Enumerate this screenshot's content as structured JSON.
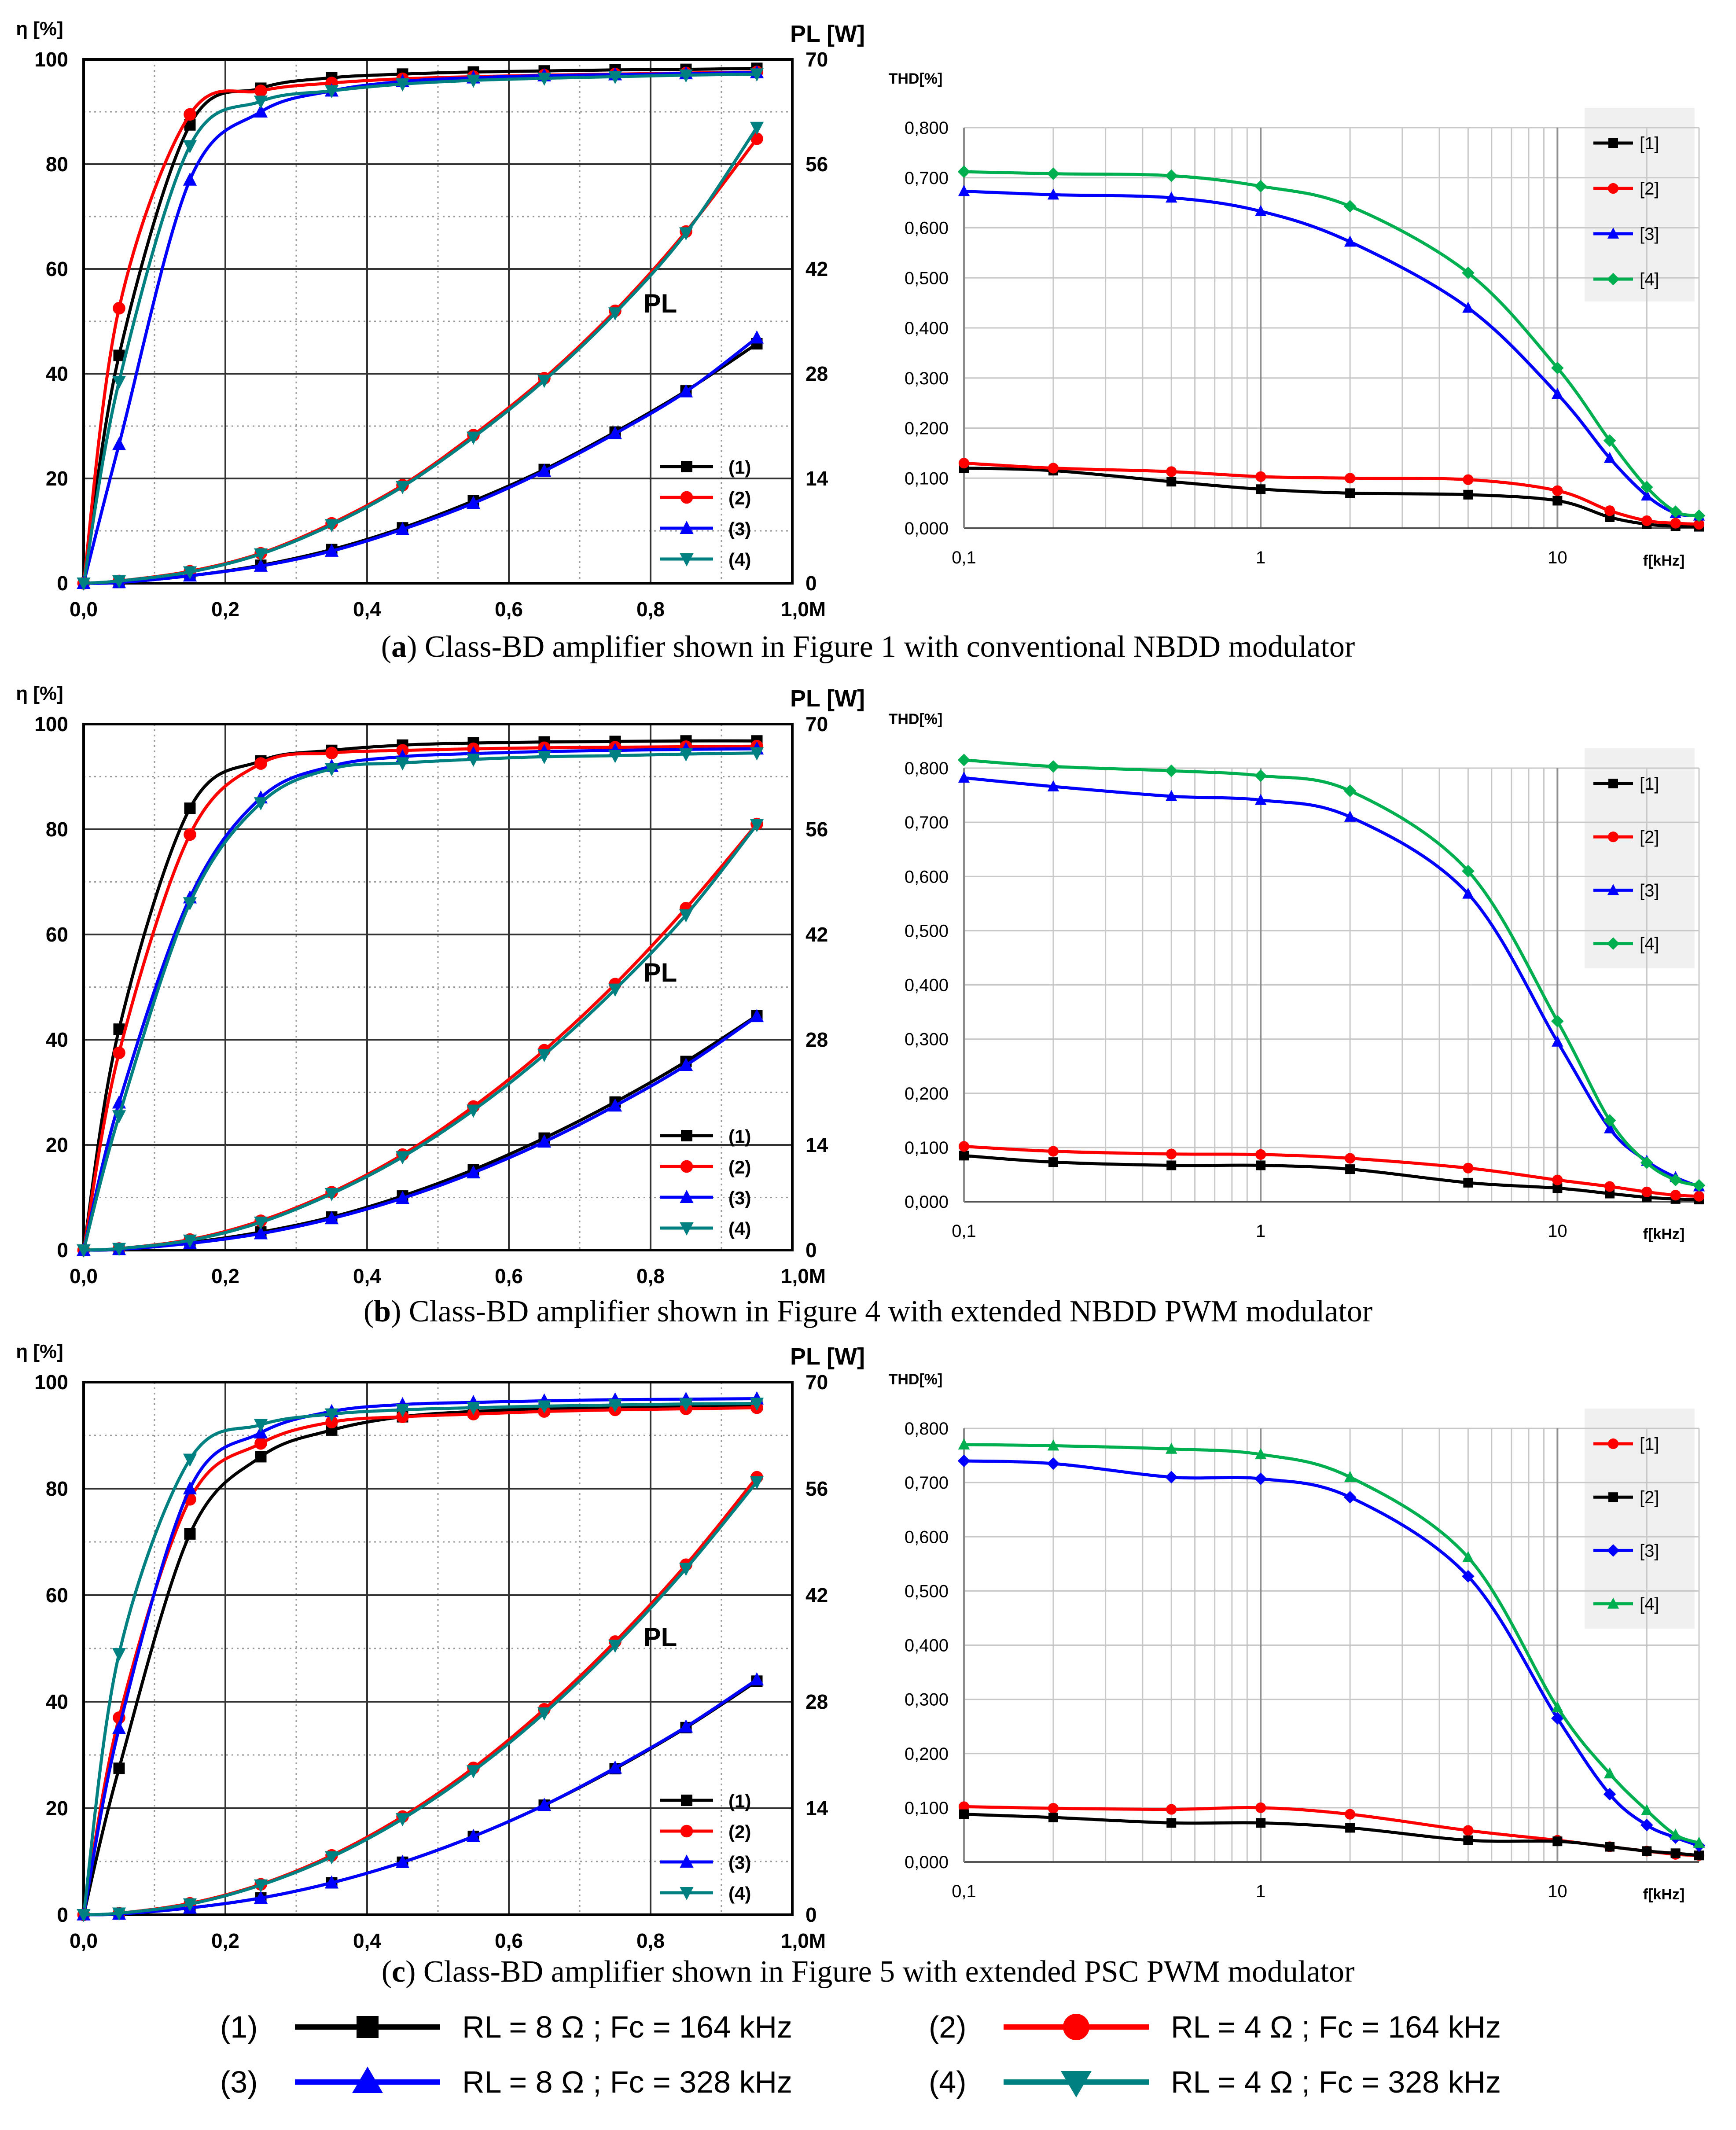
{
  "captions": [
    {
      "letter": "a",
      "text": ") Class-BD amplifier shown in Figure 1 with conventional NBDD modulator"
    },
    {
      "letter": "b",
      "text": ") Class-BD amplifier shown in Figure 4 with extended NBDD PWM modulator"
    },
    {
      "letter": "c",
      "text": ") Class-BD amplifier shown in Figure 5 with extended PSC PWM modulator"
    }
  ],
  "bottom_legend": [
    {
      "num": "(1)",
      "label": "RL = 8 Ω ; Fc = 164 kHz",
      "color": "#000000",
      "marker": "square"
    },
    {
      "num": "(2)",
      "label": "RL = 4 Ω ; Fc = 164 kHz",
      "color": "#ff0000",
      "marker": "circle"
    },
    {
      "num": "(3)",
      "label": "RL = 8 Ω ; Fc = 328 kHz",
      "color": "#0000ff",
      "marker": "triangle-up"
    },
    {
      "num": "(4)",
      "label": "RL = 4 Ω ; Fc = 328 kHz",
      "color": "#008080",
      "marker": "triangle-down"
    }
  ],
  "chart_data": [
    {
      "type": "line",
      "panel": "a-left",
      "ylabel": "η [%]",
      "ylabel2": "PL [W]",
      "xlabel_end": "1,0M",
      "annotation": "PL",
      "xlim": [
        0,
        1.0
      ],
      "ylim": [
        0,
        100
      ],
      "y2lim": [
        0,
        70
      ],
      "xticks": [
        "0,0",
        "0,2",
        "0,4",
        "0,6",
        "0,8"
      ],
      "yticks": [
        "0",
        "20",
        "40",
        "60",
        "80",
        "100"
      ],
      "y2ticks": [
        "0",
        "14",
        "28",
        "42",
        "56",
        "70"
      ],
      "legend": [
        "(1)",
        "(2)",
        "(3)",
        "(4)"
      ],
      "x": [
        0,
        0.05,
        0.15,
        0.25,
        0.35,
        0.45,
        0.55,
        0.65,
        0.75,
        0.85,
        0.95
      ],
      "series": [
        {
          "name": "(1)",
          "color": "#000000",
          "marker": "square",
          "axis": "eta",
          "values": [
            0,
            43.5,
            87.5,
            94.5,
            96.5,
            97.2,
            97.6,
            97.8,
            98,
            98.1,
            98.3
          ]
        },
        {
          "name": "(2)",
          "color": "#ff0000",
          "marker": "circle",
          "axis": "eta",
          "values": [
            0,
            52.5,
            89.5,
            94,
            95.5,
            96.3,
            96.7,
            97,
            97.2,
            97.4,
            97.6
          ]
        },
        {
          "name": "(3)",
          "color": "#0000ff",
          "marker": "triangle-up",
          "axis": "eta",
          "values": [
            0,
            26.5,
            77,
            90,
            94,
            95.8,
            96.5,
            96.9,
            97.1,
            97.3,
            97.5
          ]
        },
        {
          "name": "(4)",
          "color": "#008080",
          "marker": "triangle-down",
          "axis": "eta",
          "values": [
            0,
            38.5,
            83.5,
            92,
            94,
            95.3,
            96,
            96.4,
            96.7,
            97,
            97.2
          ]
        },
        {
          "name": "(1)",
          "color": "#000000",
          "marker": "square",
          "axis": "pl",
          "values": [
            0,
            0.1,
            1,
            2.4,
            4.5,
            7.4,
            11,
            15.2,
            20.2,
            25.7,
            32
          ]
        },
        {
          "name": "(2)",
          "color": "#ff0000",
          "marker": "circle",
          "axis": "pl",
          "values": [
            0,
            0.3,
            1.6,
            4,
            8,
            13.1,
            19.8,
            27.4,
            36.4,
            47,
            59.4
          ]
        },
        {
          "name": "(3)",
          "color": "#0000ff",
          "marker": "triangle-up",
          "axis": "pl",
          "values": [
            0,
            0.1,
            1,
            2.3,
            4.3,
            7.2,
            10.7,
            15,
            20,
            25.6,
            32.8
          ]
        },
        {
          "name": "(4)",
          "color": "#008080",
          "marker": "triangle-down",
          "axis": "pl",
          "values": [
            0,
            0.3,
            1.5,
            3.9,
            7.8,
            12.9,
            19.5,
            27.1,
            36.1,
            46.8,
            60.9
          ]
        }
      ]
    },
    {
      "type": "line",
      "panel": "a-right",
      "ylabel": "THD[%]",
      "xlabel": "f[kHz]",
      "xscale": "log",
      "xlim": [
        0.1,
        30
      ],
      "ylim": [
        0,
        0.8
      ],
      "xticks": [
        "0,1",
        "1",
        "10"
      ],
      "yticks": [
        "0,000",
        "0,100",
        "0,200",
        "0,300",
        "0,400",
        "0,500",
        "0,600",
        "0,700",
        "0,800"
      ],
      "legend": [
        "[1]",
        "[2]",
        "[3]",
        "[4]"
      ],
      "x": [
        0.1,
        0.2,
        0.5,
        1,
        2,
        5,
        10,
        15,
        20,
        25,
        30
      ],
      "series": [
        {
          "name": "[1]",
          "color": "#000000",
          "marker": "square",
          "values": [
            0.12,
            0.115,
            0.093,
            0.078,
            0.07,
            0.067,
            0.055,
            0.022,
            0.008,
            0.004,
            0.003
          ]
        },
        {
          "name": "[2]",
          "color": "#ff0000",
          "marker": "circle",
          "values": [
            0.13,
            0.12,
            0.113,
            0.103,
            0.1,
            0.097,
            0.075,
            0.035,
            0.015,
            0.01,
            0.008
          ]
        },
        {
          "name": "[3]",
          "color": "#0000ff",
          "marker": "triangle-up",
          "values": [
            0.673,
            0.666,
            0.66,
            0.633,
            0.572,
            0.44,
            0.268,
            0.14,
            0.065,
            0.03,
            0.025
          ]
        },
        {
          "name": "[4]",
          "color": "#00b050",
          "marker": "diamond",
          "values": [
            0.712,
            0.708,
            0.704,
            0.683,
            0.643,
            0.51,
            0.32,
            0.175,
            0.082,
            0.033,
            0.025
          ]
        }
      ]
    },
    {
      "type": "line",
      "panel": "b-left",
      "ylabel": "η [%]",
      "ylabel2": "PL [W]",
      "xlabel_end": "1,0M",
      "annotation": "PL",
      "xlim": [
        0,
        1.0
      ],
      "ylim": [
        0,
        100
      ],
      "y2lim": [
        0,
        70
      ],
      "xticks": [
        "0,0",
        "0,2",
        "0,4",
        "0,6",
        "0,8"
      ],
      "yticks": [
        "0",
        "20",
        "40",
        "60",
        "80",
        "100"
      ],
      "y2ticks": [
        "0",
        "14",
        "28",
        "42",
        "56",
        "70"
      ],
      "legend": [
        "(1)",
        "(2)",
        "(3)",
        "(4)"
      ],
      "x": [
        0,
        0.05,
        0.15,
        0.25,
        0.35,
        0.45,
        0.55,
        0.65,
        0.75,
        0.85,
        0.95
      ],
      "series": [
        {
          "name": "(1)",
          "color": "#000000",
          "marker": "square",
          "axis": "eta",
          "values": [
            0,
            42,
            84,
            93,
            95,
            96,
            96.4,
            96.6,
            96.7,
            96.8,
            96.8
          ]
        },
        {
          "name": "(2)",
          "color": "#ff0000",
          "marker": "circle",
          "axis": "eta",
          "values": [
            0,
            37.5,
            79,
            92.5,
            94.5,
            95,
            95.3,
            95.5,
            95.6,
            95.7,
            95.8
          ]
        },
        {
          "name": "(3)",
          "color": "#0000ff",
          "marker": "triangle-up",
          "axis": "eta",
          "values": [
            0,
            28,
            67,
            86,
            92,
            93.8,
            94.4,
            94.8,
            95,
            95.2,
            95.3
          ]
        },
        {
          "name": "(4)",
          "color": "#008080",
          "marker": "triangle-down",
          "axis": "eta",
          "values": [
            0,
            25.5,
            66,
            85,
            91.5,
            92.6,
            93.3,
            93.8,
            94,
            94.3,
            94.5
          ]
        },
        {
          "name": "(1)",
          "color": "#000000",
          "marker": "square",
          "axis": "pl",
          "values": [
            0,
            0.1,
            1,
            2.4,
            4.4,
            7.2,
            10.7,
            14.9,
            19.7,
            25.1,
            31.2
          ]
        },
        {
          "name": "(2)",
          "color": "#ff0000",
          "marker": "circle",
          "axis": "pl",
          "values": [
            0,
            0.2,
            1.4,
            3.9,
            7.7,
            12.7,
            19.1,
            26.6,
            35.4,
            45.5,
            56.7
          ]
        },
        {
          "name": "(3)",
          "color": "#0000ff",
          "marker": "triangle-up",
          "axis": "pl",
          "values": [
            0,
            0.1,
            0.9,
            2.2,
            4.2,
            6.9,
            10.3,
            14.4,
            19.2,
            24.6,
            31.1
          ]
        },
        {
          "name": "(4)",
          "color": "#008080",
          "marker": "triangle-down",
          "axis": "pl",
          "values": [
            0,
            0.2,
            1.3,
            3.7,
            7.5,
            12.4,
            18.6,
            26,
            34.7,
            44.6,
            56.6
          ]
        }
      ]
    },
    {
      "type": "line",
      "panel": "b-right",
      "ylabel": "THD[%]",
      "xlabel": "f[kHz]",
      "xscale": "log",
      "xlim": [
        0.1,
        30
      ],
      "ylim": [
        0,
        0.8
      ],
      "xticks": [
        "0,1",
        "1",
        "10"
      ],
      "yticks": [
        "0,000",
        "0,100",
        "0,200",
        "0,300",
        "0,400",
        "0,500",
        "0,600",
        "0,700",
        "0,800"
      ],
      "legend": [
        "[1]",
        "[2]",
        "[3]",
        "[4]"
      ],
      "x": [
        0.1,
        0.2,
        0.5,
        1,
        2,
        5,
        10,
        15,
        20,
        25,
        30
      ],
      "series": [
        {
          "name": "[1]",
          "color": "#000000",
          "marker": "square",
          "values": [
            0.085,
            0.073,
            0.067,
            0.067,
            0.06,
            0.035,
            0.025,
            0.015,
            0.008,
            0.005,
            0.004
          ]
        },
        {
          "name": "[2]",
          "color": "#ff0000",
          "marker": "circle",
          "values": [
            0.102,
            0.093,
            0.088,
            0.087,
            0.08,
            0.062,
            0.04,
            0.028,
            0.018,
            0.012,
            0.01
          ]
        },
        {
          "name": "[3]",
          "color": "#0000ff",
          "marker": "triangle-up",
          "values": [
            0.782,
            0.766,
            0.748,
            0.741,
            0.71,
            0.568,
            0.295,
            0.135,
            0.075,
            0.045,
            0.028
          ]
        },
        {
          "name": "[4]",
          "color": "#00b050",
          "marker": "diamond",
          "values": [
            0.815,
            0.803,
            0.795,
            0.786,
            0.758,
            0.61,
            0.333,
            0.15,
            0.072,
            0.04,
            0.03
          ]
        }
      ]
    },
    {
      "type": "line",
      "panel": "c-left",
      "ylabel": "η [%]",
      "ylabel2": "PL [W]",
      "xlabel_end": "1,0M",
      "annotation": "PL",
      "xlim": [
        0,
        1.0
      ],
      "ylim": [
        0,
        100
      ],
      "y2lim": [
        0,
        70
      ],
      "xticks": [
        "0,0",
        "0,2",
        "0,4",
        "0,6",
        "0,8"
      ],
      "yticks": [
        "0",
        "20",
        "40",
        "60",
        "80",
        "100"
      ],
      "y2ticks": [
        "0",
        "14",
        "28",
        "42",
        "56",
        "70"
      ],
      "legend": [
        "(1)",
        "(2)",
        "(3)",
        "(4)"
      ],
      "x": [
        0,
        0.05,
        0.15,
        0.25,
        0.35,
        0.45,
        0.55,
        0.65,
        0.75,
        0.85,
        0.95
      ],
      "series": [
        {
          "name": "(1)",
          "color": "#000000",
          "marker": "square",
          "axis": "eta",
          "values": [
            0,
            27.5,
            71.5,
            86,
            91,
            93.5,
            94.5,
            95,
            95.3,
            95.5,
            95.7
          ]
        },
        {
          "name": "(2)",
          "color": "#ff0000",
          "marker": "circle",
          "axis": "eta",
          "values": [
            0,
            37,
            78,
            88.5,
            92.5,
            93.5,
            94,
            94.5,
            94.8,
            95,
            95.2
          ]
        },
        {
          "name": "(3)",
          "color": "#0000ff",
          "marker": "triangle-up",
          "axis": "eta",
          "values": [
            0,
            35,
            80,
            90.5,
            94.5,
            95.8,
            96.2,
            96.5,
            96.7,
            96.8,
            96.9
          ]
        },
        {
          "name": "(4)",
          "color": "#008080",
          "marker": "triangle-down",
          "axis": "eta",
          "values": [
            0,
            49,
            85.5,
            92,
            94,
            94.8,
            95.2,
            95.5,
            95.7,
            95.9,
            96
          ]
        },
        {
          "name": "(1)",
          "color": "#000000",
          "marker": "square",
          "axis": "pl",
          "values": [
            0,
            0.1,
            0.9,
            2.2,
            4.2,
            6.9,
            10.3,
            14.4,
            19.2,
            24.6,
            30.7
          ]
        },
        {
          "name": "(2)",
          "color": "#ff0000",
          "marker": "circle",
          "axis": "pl",
          "values": [
            0,
            0.2,
            1.5,
            4,
            7.8,
            12.9,
            19.3,
            27,
            35.9,
            46,
            57.5
          ]
        },
        {
          "name": "(3)",
          "color": "#0000ff",
          "marker": "triangle-up",
          "axis": "pl",
          "values": [
            0,
            0.1,
            0.9,
            2.2,
            4.2,
            6.9,
            10.3,
            14.4,
            19.3,
            24.7,
            30.9
          ]
        },
        {
          "name": "(4)",
          "color": "#008080",
          "marker": "triangle-down",
          "axis": "pl",
          "values": [
            0,
            0.2,
            1.4,
            3.9,
            7.6,
            12.6,
            18.9,
            26.5,
            35.4,
            45.5,
            56.9
          ]
        }
      ]
    },
    {
      "type": "line",
      "panel": "c-right",
      "ylabel": "THD[%]",
      "xlabel": "f[kHz]",
      "xscale": "log",
      "xlim": [
        0.1,
        30
      ],
      "ylim": [
        0,
        0.8
      ],
      "xticks": [
        "0,1",
        "1",
        "10"
      ],
      "yticks": [
        "0,000",
        "0,100",
        "0,200",
        "0,300",
        "0,400",
        "0,500",
        "0,600",
        "0,700",
        "0,800"
      ],
      "legend": [
        "[1]",
        "[2]",
        "[3]",
        "[4]"
      ],
      "x": [
        0.1,
        0.2,
        0.5,
        1,
        2,
        5,
        10,
        15,
        20,
        25,
        30
      ],
      "series": [
        {
          "name": "[1]",
          "color": "#ff0000",
          "marker": "circle",
          "values": [
            0.102,
            0.099,
            0.097,
            0.1,
            0.088,
            0.058,
            0.04,
            0.028,
            0.02,
            0.014,
            0.012
          ]
        },
        {
          "name": "[2]",
          "color": "#000000",
          "marker": "square",
          "values": [
            0.088,
            0.082,
            0.072,
            0.072,
            0.063,
            0.04,
            0.038,
            0.028,
            0.02,
            0.016,
            0.012
          ]
        },
        {
          "name": "[3]",
          "color": "#0000ff",
          "marker": "diamond",
          "values": [
            0.74,
            0.735,
            0.71,
            0.707,
            0.673,
            0.527,
            0.265,
            0.125,
            0.068,
            0.045,
            0.03
          ]
        },
        {
          "name": "[4]",
          "color": "#00b050",
          "marker": "triangle-up",
          "values": [
            0.77,
            0.768,
            0.762,
            0.752,
            0.71,
            0.562,
            0.285,
            0.163,
            0.095,
            0.05,
            0.035
          ]
        }
      ]
    }
  ]
}
